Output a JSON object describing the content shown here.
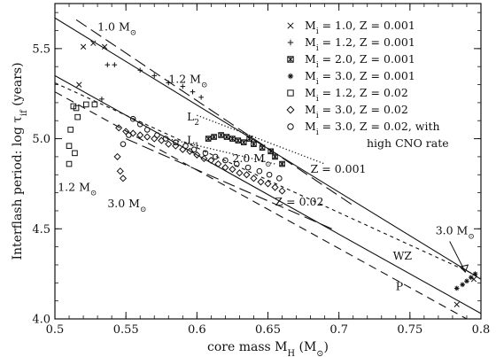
{
  "chart_data": {
    "type": "scatter",
    "xlabel": "core mass  M_H  (M_⊙)",
    "ylabel": "Interflash period:  log τ_if  (years)",
    "xlim": [
      0.5,
      0.8
    ],
    "ylim": [
      4.0,
      5.75
    ],
    "x_ticks": [
      "0.5",
      "0.55",
      "0.6",
      "0.65",
      "0.7",
      "0.75",
      "0.8"
    ],
    "y_ticks": [
      "4.0",
      "4.5",
      "5.0",
      "5.5"
    ],
    "grid": false,
    "legend_position": "top-right",
    "legend": [
      {
        "marker": "x",
        "label": "M_i = 1.0,  Z = 0.001"
      },
      {
        "marker": "plus",
        "label": "M_i = 1.2,  Z = 0.001"
      },
      {
        "marker": "starbox",
        "label": "M_i = 2.0,  Z = 0.001"
      },
      {
        "marker": "star",
        "label": "M_i = 3.0,  Z = 0.001"
      },
      {
        "marker": "square",
        "label": "M_i = 1.2,  Z = 0.02"
      },
      {
        "marker": "diamond",
        "label": "M_i = 3.0,  Z = 0.02"
      },
      {
        "marker": "circle",
        "label": "M_i = 3.0,  Z = 0.02, with"
      },
      {
        "marker": "none",
        "label": "high CNO rate"
      }
    ],
    "series": [
      {
        "marker": "x",
        "x": [
          0.52,
          0.527,
          0.535,
          0.517,
          0.795,
          0.783
        ],
        "y": [
          5.51,
          5.53,
          5.51,
          5.3,
          4.22,
          4.08
        ]
      },
      {
        "marker": "plus",
        "x": [
          0.537,
          0.542,
          0.56,
          0.57,
          0.58,
          0.59,
          0.597,
          0.603,
          0.533
        ],
        "y": [
          5.41,
          5.41,
          5.38,
          5.35,
          5.31,
          5.29,
          5.26,
          5.23,
          5.22
        ]
      },
      {
        "marker": "starbox",
        "x": [
          0.608,
          0.612,
          0.617,
          0.621,
          0.625,
          0.629,
          0.633,
          0.64,
          0.646,
          0.652,
          0.655,
          0.66,
          0.637
        ],
        "y": [
          5.0,
          5.01,
          5.02,
          5.01,
          5.0,
          4.99,
          4.98,
          4.97,
          4.95,
          4.93,
          4.9,
          4.86,
          5.0
        ]
      },
      {
        "marker": "star",
        "x": [
          0.783,
          0.787,
          0.79,
          0.793,
          0.796
        ],
        "y": [
          4.17,
          4.19,
          4.21,
          4.23,
          4.25
        ]
      },
      {
        "marker": "square",
        "x": [
          0.513,
          0.515,
          0.511,
          0.51,
          0.51,
          0.522,
          0.528,
          0.516,
          0.514
        ],
        "y": [
          5.18,
          5.17,
          5.05,
          4.96,
          4.86,
          5.19,
          5.19,
          5.12,
          4.92
        ]
      },
      {
        "marker": "diamond",
        "x": [
          0.545,
          0.55,
          0.555,
          0.56,
          0.565,
          0.57,
          0.575,
          0.58,
          0.585,
          0.59,
          0.595,
          0.6,
          0.605,
          0.61,
          0.615,
          0.62,
          0.625,
          0.63,
          0.635,
          0.64,
          0.645,
          0.65,
          0.655,
          0.66,
          0.546,
          0.548,
          0.544
        ],
        "y": [
          5.06,
          5.04,
          5.03,
          5.02,
          5.01,
          5.0,
          4.99,
          4.97,
          4.96,
          4.94,
          4.93,
          4.91,
          4.89,
          4.88,
          4.86,
          4.84,
          4.83,
          4.81,
          4.8,
          4.78,
          4.76,
          4.75,
          4.73,
          4.71,
          4.82,
          4.78,
          4.9
        ]
      },
      {
        "marker": "circle",
        "x": [
          0.555,
          0.56,
          0.565,
          0.572,
          0.578,
          0.585,
          0.592,
          0.598,
          0.606,
          0.613,
          0.62,
          0.628,
          0.636,
          0.644,
          0.651,
          0.658,
          0.548,
          0.552
        ],
        "y": [
          5.11,
          5.08,
          5.05,
          5.02,
          5.0,
          4.98,
          4.96,
          4.94,
          4.92,
          4.9,
          4.88,
          4.86,
          4.84,
          4.82,
          4.8,
          4.78,
          4.97,
          5.02
        ]
      }
    ],
    "lines": [
      {
        "style": "solid",
        "label": "Z = 0.001",
        "x": [
          0.5,
          0.8
        ],
        "y": [
          5.67,
          4.22
        ]
      },
      {
        "style": "long-dash",
        "x": [
          0.515,
          0.71
        ],
        "y": [
          5.66,
          4.63
        ]
      },
      {
        "style": "solid",
        "label": "Z = 0.02",
        "x": [
          0.5,
          0.8
        ],
        "y": [
          5.35,
          4.03
        ]
      },
      {
        "style": "long-dash",
        "x": [
          0.55,
          0.695
        ],
        "y": [
          5.0,
          4.5
        ]
      },
      {
        "style": "short-dash",
        "label": "WZ",
        "x": [
          0.5,
          0.8
        ],
        "y": [
          5.31,
          4.23
        ]
      },
      {
        "style": "dash",
        "label": "P",
        "x": [
          0.5,
          0.79
        ],
        "y": [
          5.26,
          4.0
        ]
      },
      {
        "style": "dotted",
        "label": "L2",
        "x": [
          0.6,
          0.69
        ],
        "y": [
          5.13,
          4.86
        ]
      },
      {
        "style": "dotted",
        "label": "L1",
        "x": [
          0.58,
          0.655
        ],
        "y": [
          5.0,
          4.86
        ]
      }
    ],
    "annotations": [
      {
        "text": "1.0 M_⊙",
        "x": 0.53,
        "y": 5.6
      },
      {
        "text": "1.2 M_⊙",
        "x": 0.58,
        "y": 5.31
      },
      {
        "text": "L2",
        "x": 0.593,
        "y": 5.1
      },
      {
        "text": "L1",
        "x": 0.593,
        "y": 4.97
      },
      {
        "text": "2.0 M_⊙",
        "x": 0.625,
        "y": 4.87
      },
      {
        "text": "Z = 0.001",
        "x": 0.68,
        "y": 4.81
      },
      {
        "text": "Z = 0.02",
        "x": 0.655,
        "y": 4.63
      },
      {
        "text": "1.2 M_⊙",
        "x": 0.502,
        "y": 4.71
      },
      {
        "text": "3.0 M_⊙",
        "x": 0.537,
        "y": 4.62
      },
      {
        "text": "3.0 M_⊙",
        "x": 0.768,
        "y": 4.47
      },
      {
        "text": "WZ",
        "x": 0.738,
        "y": 4.33
      },
      {
        "text": "P",
        "x": 0.74,
        "y": 4.16
      }
    ]
  }
}
